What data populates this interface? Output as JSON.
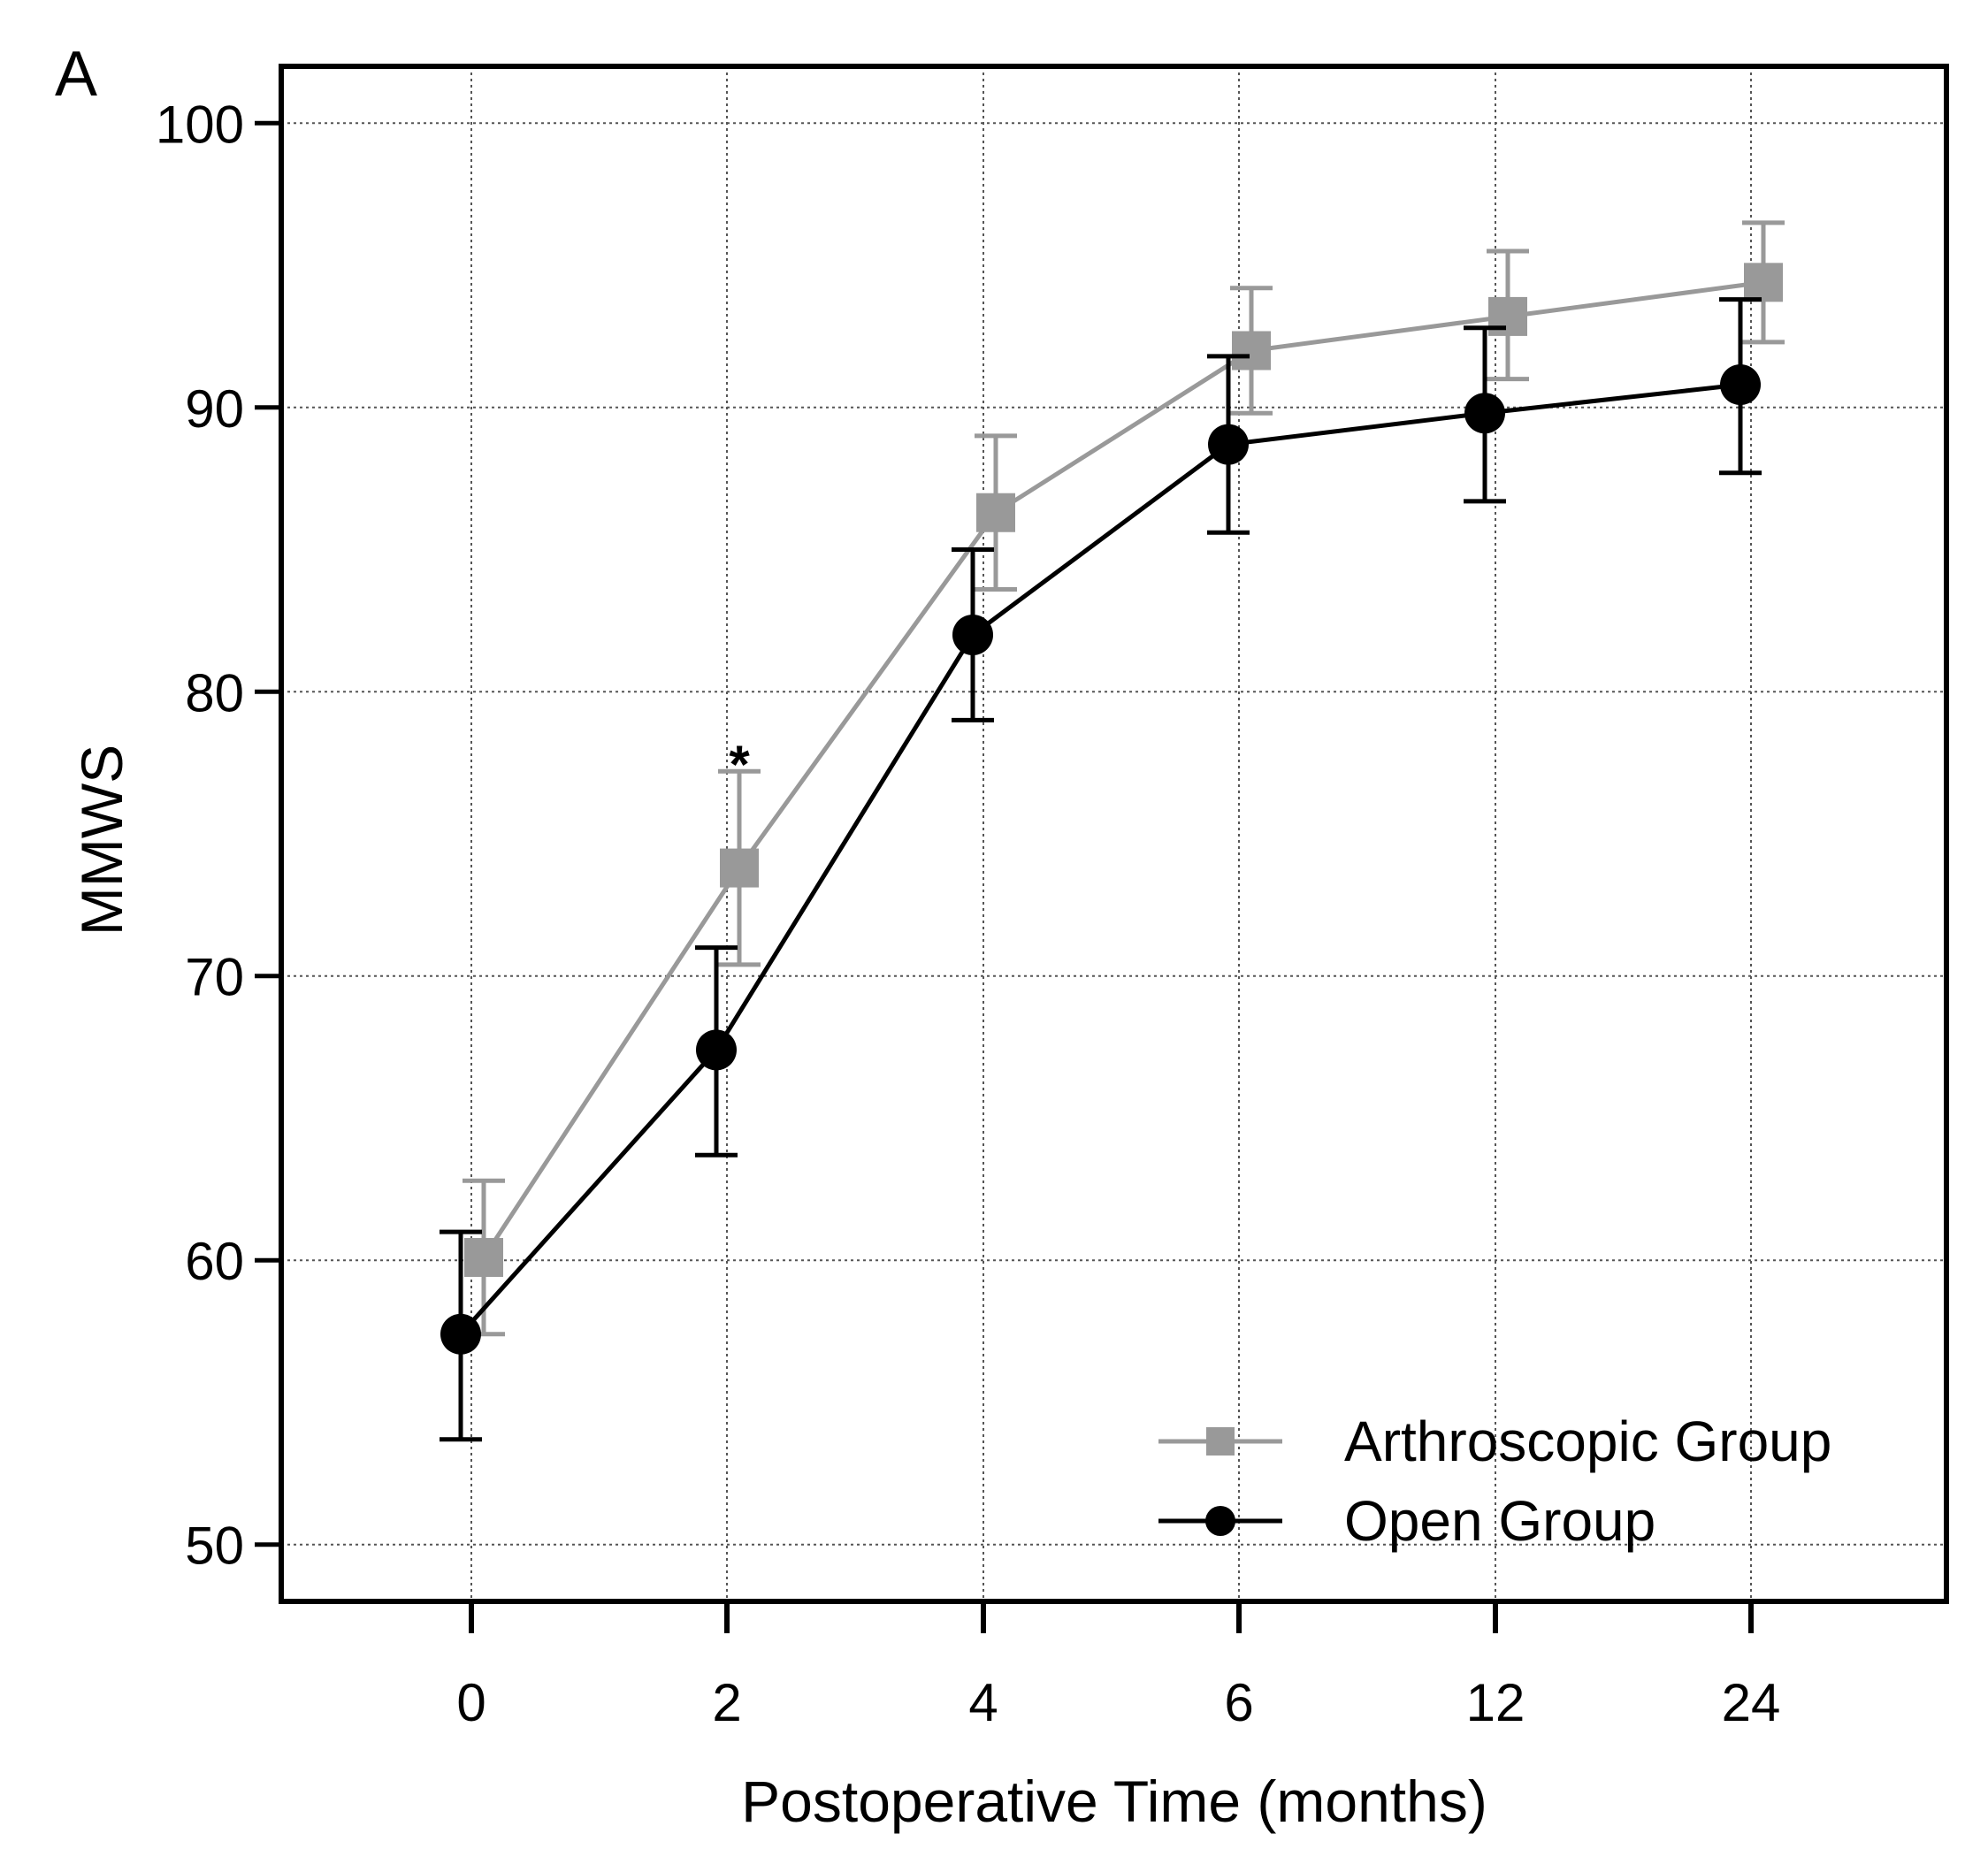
{
  "chart_data": {
    "type": "line",
    "panel_label": "A",
    "title": "",
    "xlabel": "Postoperative Time (months)",
    "ylabel": "MMWS",
    "categories": [
      "0",
      "2",
      "4",
      "6",
      "12",
      "24"
    ],
    "ylim": [
      48,
      102
    ],
    "yticks": [
      50,
      60,
      70,
      80,
      90,
      100
    ],
    "grid": true,
    "legend_position": "bottom-right",
    "series": [
      {
        "name": "Arthroscopic Group",
        "marker": "square",
        "color": "#999999",
        "values": [
          60.1,
          73.8,
          86.3,
          92.0,
          93.2,
          94.4
        ],
        "err_upper": [
          62.8,
          77.2,
          89.0,
          94.2,
          95.5,
          96.5
        ],
        "err_lower": [
          57.4,
          70.4,
          83.6,
          89.8,
          91.0,
          92.3
        ]
      },
      {
        "name": "Open Group",
        "marker": "circle",
        "color": "#000000",
        "values": [
          57.4,
          67.4,
          82.0,
          88.7,
          89.8,
          90.8
        ],
        "err_upper": [
          61.0,
          71.0,
          85.0,
          91.8,
          92.8,
          93.8
        ],
        "err_lower": [
          53.7,
          63.7,
          79.0,
          85.6,
          86.7,
          87.7
        ]
      }
    ],
    "annotations": [
      {
        "text": "*",
        "category": "2",
        "y": 78.2
      }
    ]
  }
}
